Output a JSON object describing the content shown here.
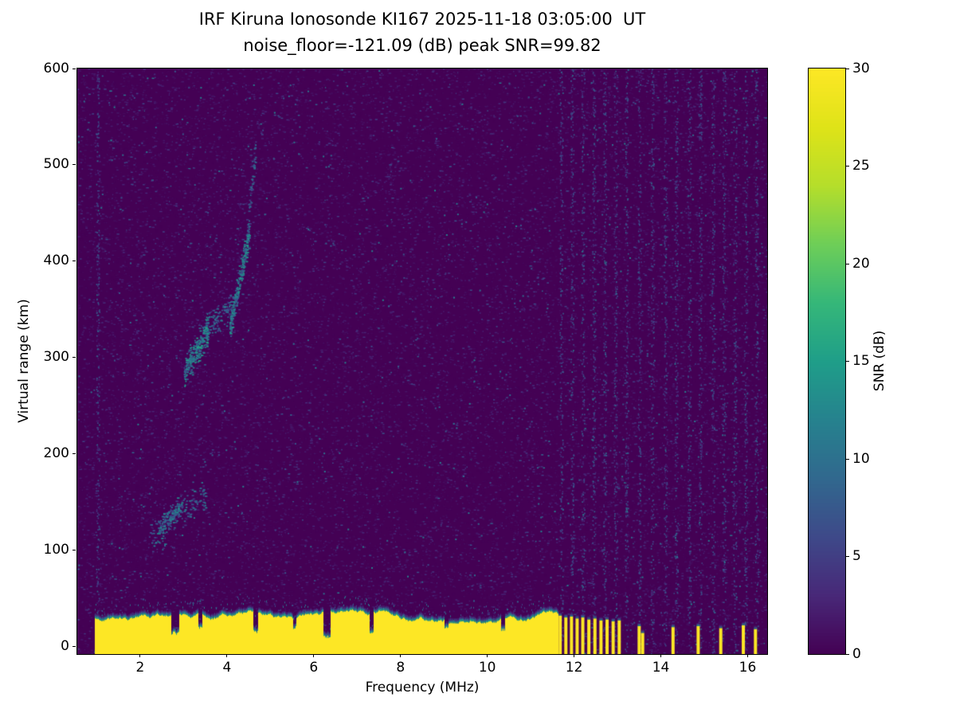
{
  "chart_data": {
    "type": "heatmap",
    "title": "IRF Kiruna Ionosonde KI167 2025-11-18 03:05:00  UT",
    "subtitle": "noise_floor=-121.09 (dB) peak SNR=99.82",
    "xlabel": "Frequency (MHz)",
    "ylabel": "Virtual range (km)",
    "colorbar_label": "SNR (dB)",
    "colormap": "viridis",
    "background": "#ffffff",
    "xlim": [
      0.55,
      16.45
    ],
    "ylim": [
      -8,
      600
    ],
    "clim": [
      0,
      30
    ],
    "xticks": [
      2,
      4,
      6,
      8,
      10,
      12,
      14,
      16
    ],
    "yticks": [
      0,
      100,
      200,
      300,
      400,
      500,
      600
    ],
    "colorbar_ticks": [
      0,
      5,
      10,
      15,
      20,
      25,
      30
    ],
    "features": {
      "noise_seed": 42,
      "ground_band": {
        "f0": 0.95,
        "f1": 11.62,
        "top_km_base": 30,
        "top_km_min": 24,
        "top_km_max": 40,
        "snr": 30,
        "notches": [
          {
            "f": 2.8,
            "w": 0.1,
            "top": 12
          },
          {
            "f": 3.38,
            "w": 0.05,
            "top": 18
          },
          {
            "f": 4.65,
            "w": 0.06,
            "top": 13
          },
          {
            "f": 5.55,
            "w": 0.04,
            "top": 18
          },
          {
            "f": 6.3,
            "w": 0.08,
            "top": 8
          },
          {
            "f": 7.32,
            "w": 0.05,
            "top": 12
          },
          {
            "f": 9.05,
            "w": 0.04,
            "top": 18
          },
          {
            "f": 10.35,
            "w": 0.05,
            "top": 16
          }
        ]
      },
      "stripes": [
        [
          11.68,
          32
        ],
        [
          11.81,
          30
        ],
        [
          11.94,
          31
        ],
        [
          12.07,
          29
        ],
        [
          12.2,
          30
        ],
        [
          12.34,
          28
        ],
        [
          12.48,
          29
        ],
        [
          12.62,
          27
        ],
        [
          12.76,
          28
        ],
        [
          12.9,
          26
        ],
        [
          13.04,
          27
        ],
        [
          13.5,
          21
        ],
        [
          13.58,
          14
        ],
        [
          14.28,
          20
        ],
        [
          14.86,
          21
        ],
        [
          15.38,
          19
        ],
        [
          15.9,
          22
        ],
        [
          16.18,
          18
        ]
      ],
      "echo_traces": [
        {
          "f0": 3.0,
          "f1": 3.55,
          "r0": 285,
          "r1": 330,
          "n": 260,
          "snr": [
            6,
            16
          ],
          "spread": 14
        },
        {
          "f0": 3.55,
          "f1": 4.1,
          "r0": 330,
          "r1": 355,
          "n": 90,
          "snr": [
            5,
            12
          ],
          "spread": 16
        },
        {
          "f0": 4.05,
          "f1": 4.5,
          "r0": 330,
          "r1": 430,
          "n": 240,
          "snr": [
            6,
            15
          ],
          "spread": 14
        },
        {
          "f0": 4.45,
          "f1": 4.65,
          "r0": 430,
          "r1": 520,
          "n": 50,
          "snr": [
            4,
            10
          ],
          "spread": 16
        },
        {
          "f0": 2.2,
          "f1": 3.5,
          "r0": 112,
          "r1": 160,
          "n": 150,
          "snr": [
            4,
            12
          ],
          "spread": 18
        },
        {
          "f0": 2.4,
          "f1": 2.95,
          "r0": 122,
          "r1": 148,
          "n": 120,
          "snr": [
            5,
            13
          ],
          "spread": 10
        }
      ],
      "rfi_lines": [
        1.02,
        11.7,
        11.95,
        12.2,
        12.45,
        12.7,
        12.95,
        13.2,
        13.5,
        13.8,
        14.1,
        14.35,
        14.65,
        14.9,
        15.2,
        15.45,
        15.7,
        15.95,
        16.2
      ]
    }
  }
}
